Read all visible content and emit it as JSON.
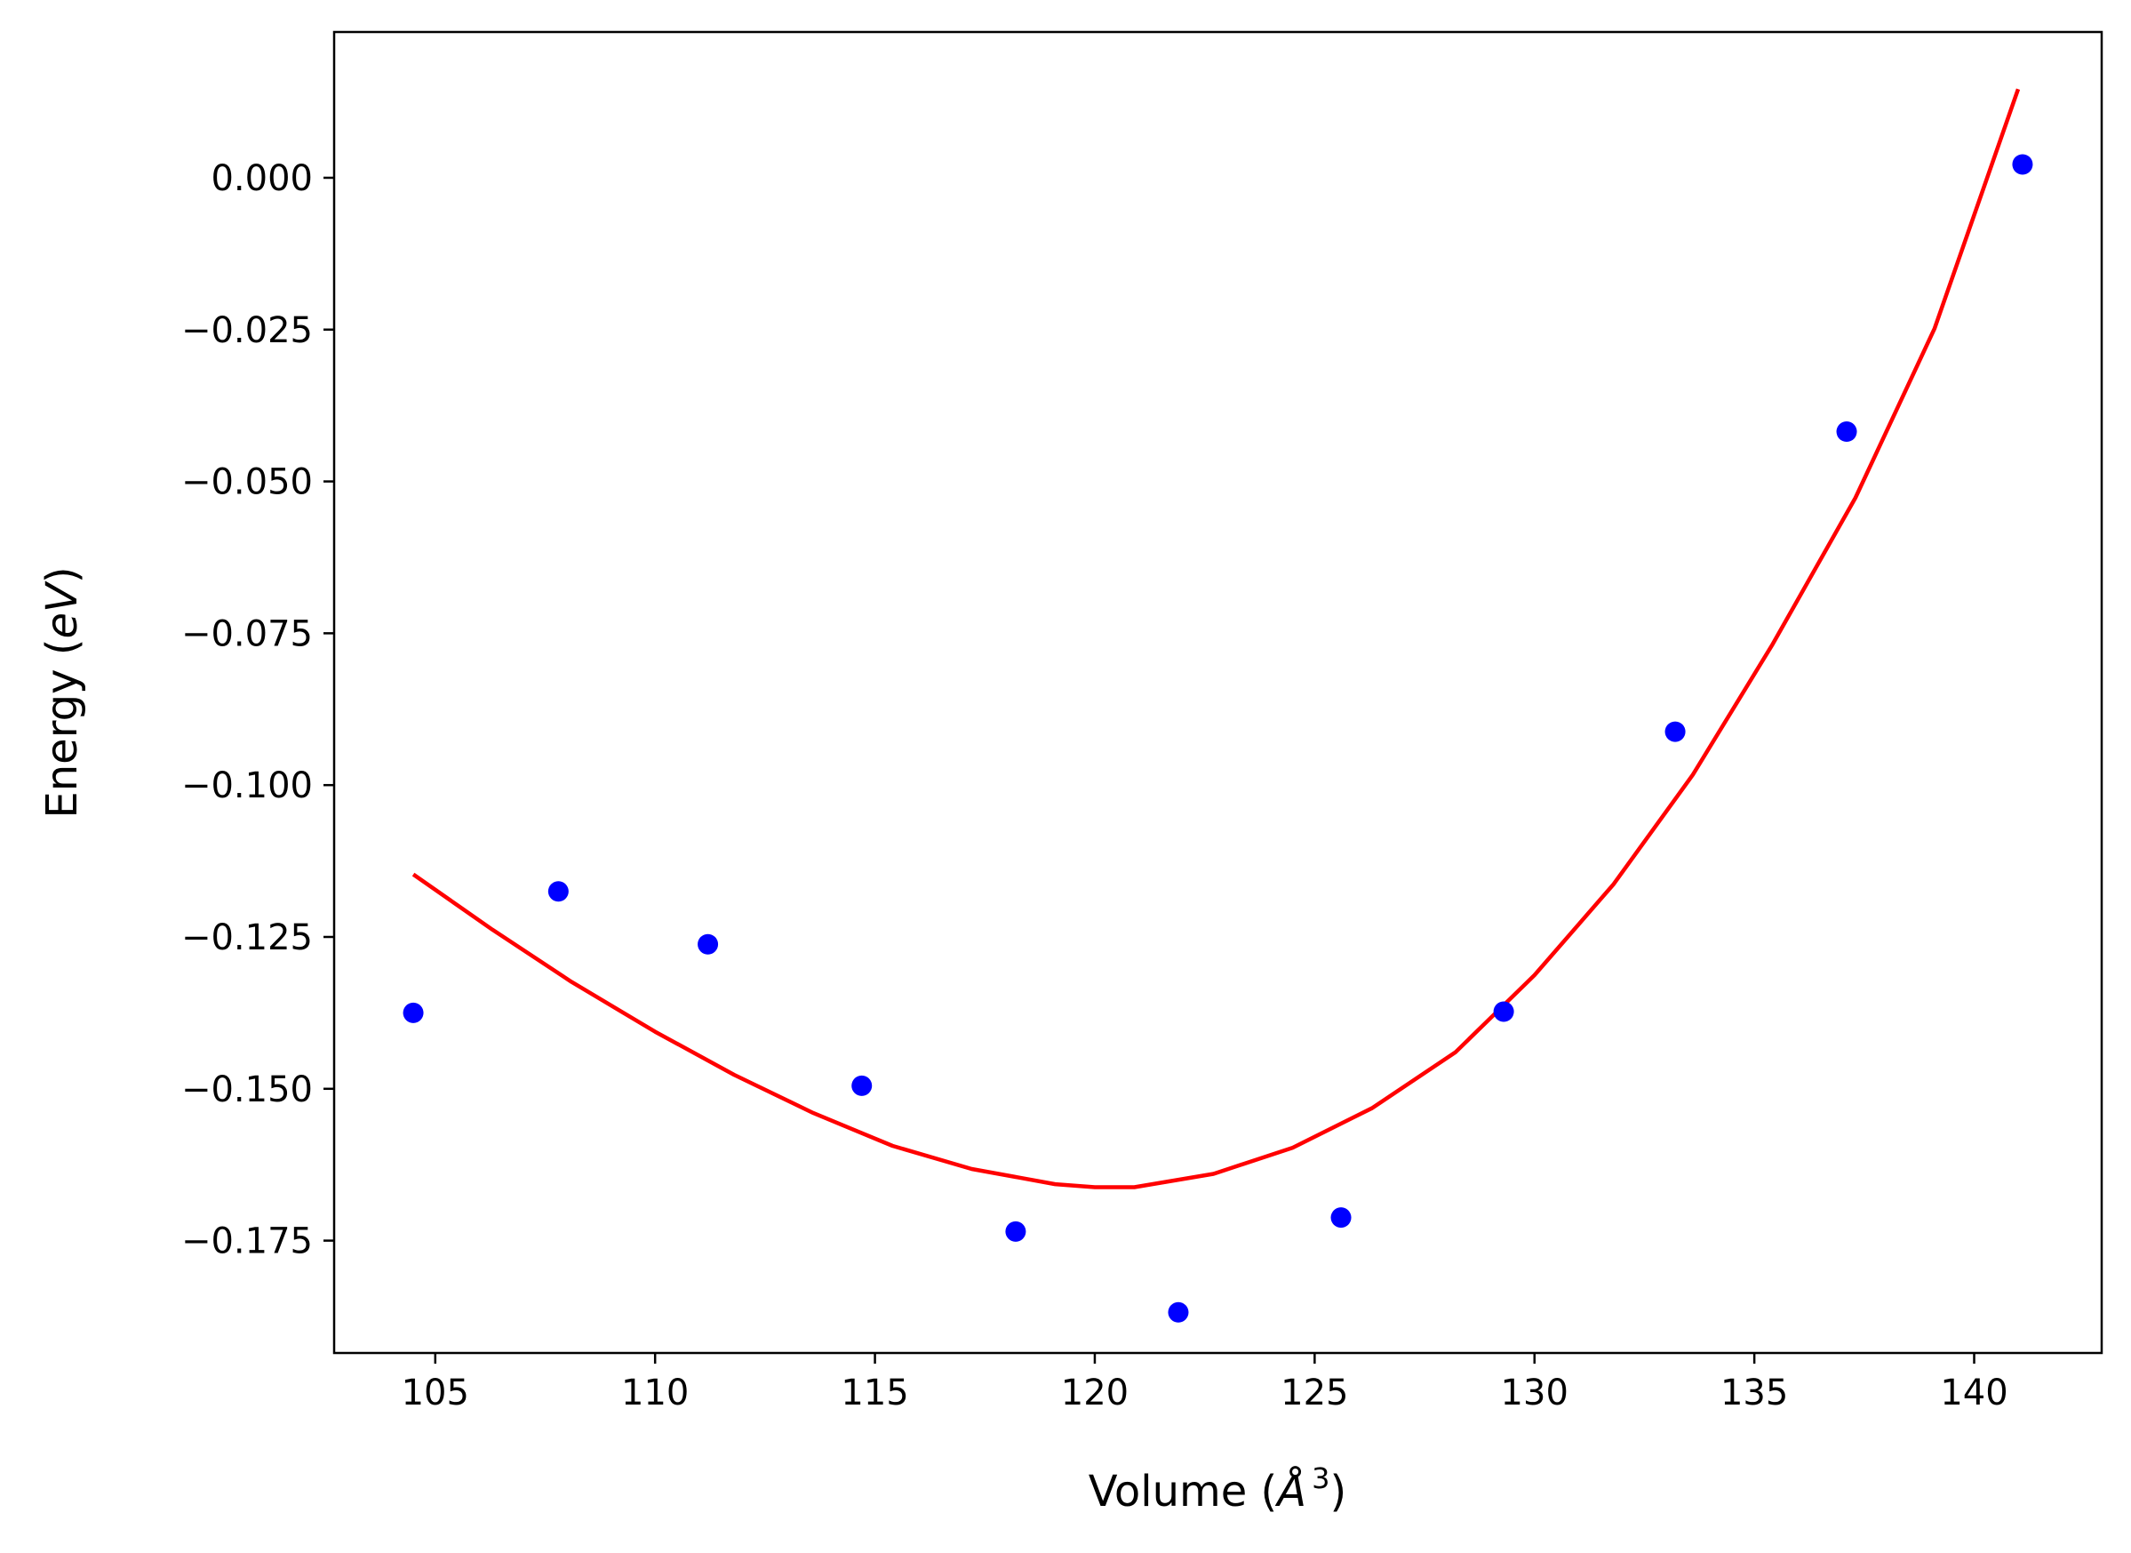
{
  "chart_data": {
    "type": "scatter",
    "title": "",
    "xlabel": "Volume (",
    "xlabel_symbol": "Å",
    "xlabel_superscript": "3",
    "xlabel_close": ")",
    "ylabel": "Energy (",
    "ylabel_unit": "eV",
    "ylabel_close": ")",
    "xlim": [
      102.7,
      142.9
    ],
    "ylim": [
      -0.1935,
      0.024
    ],
    "xticks": [
      105,
      110,
      115,
      120,
      125,
      130,
      135,
      140
    ],
    "xtick_labels": [
      "105",
      "110",
      "115",
      "120",
      "125",
      "130",
      "135",
      "140"
    ],
    "yticks": [
      0.0,
      -0.025,
      -0.05,
      -0.075,
      -0.1,
      -0.125,
      -0.15,
      -0.175
    ],
    "ytick_labels": [
      "0.000",
      "−0.025",
      "−0.050",
      "−0.075",
      "−0.100",
      "−0.125",
      "−0.150",
      "−0.175"
    ],
    "grid": false,
    "series": [
      {
        "kind": "scatter",
        "color": "#0000ff",
        "x": [
          104.5,
          107.8,
          111.2,
          114.7,
          118.2,
          121.9,
          125.6,
          129.3,
          133.2,
          137.1,
          141.1
        ],
        "y": [
          -0.1375,
          -0.1175,
          -0.1262,
          -0.1495,
          -0.1735,
          -0.1868,
          -0.1712,
          -0.1373,
          -0.0912,
          -0.0418,
          0.0022
        ]
      },
      {
        "kind": "line",
        "color": "#ff0000",
        "x": [
          104.5,
          106.3,
          108.1,
          110.0,
          111.8,
          113.6,
          115.4,
          117.2,
          119.1,
          120.0,
          120.9,
          122.7,
          124.5,
          126.3,
          128.2,
          130.0,
          131.8,
          133.6,
          135.4,
          137.3,
          139.1,
          141.0
        ],
        "y": [
          -0.1147,
          -0.1238,
          -0.1324,
          -0.1406,
          -0.1477,
          -0.154,
          -0.1594,
          -0.1632,
          -0.1657,
          -0.1662,
          -0.1662,
          -0.164,
          -0.1597,
          -0.1532,
          -0.144,
          -0.1313,
          -0.1163,
          -0.0983,
          -0.077,
          -0.0527,
          -0.0248,
          0.0146
        ]
      }
    ]
  }
}
